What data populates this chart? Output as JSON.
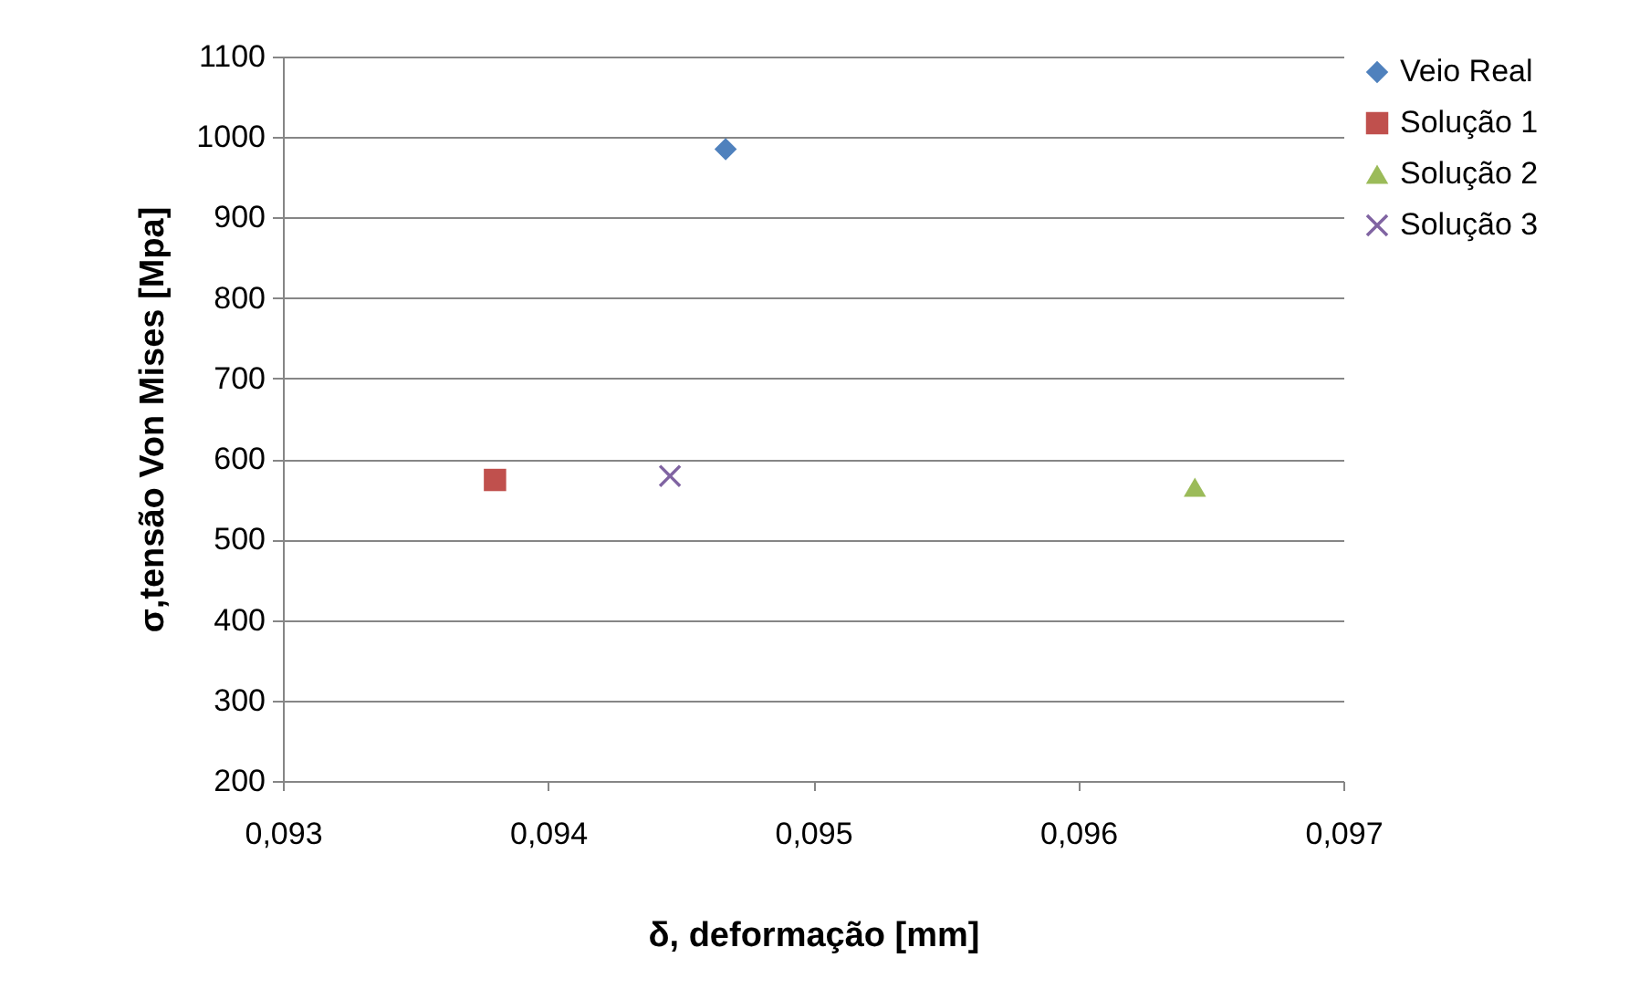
{
  "chart_data": {
    "type": "scatter",
    "xlabel": "δ, deformação [mm]",
    "ylabel": "σ,tensão Von Mises [Mpa]",
    "xlim": [
      0.093,
      0.097
    ],
    "xticks": [
      {
        "value": 0.093,
        "label": "0,093"
      },
      {
        "value": 0.094,
        "label": "0,094"
      },
      {
        "value": 0.095,
        "label": "0,095"
      },
      {
        "value": 0.096,
        "label": "0,096"
      },
      {
        "value": 0.097,
        "label": "0,097"
      }
    ],
    "ylim": [
      200,
      1100
    ],
    "yticks": [
      200,
      300,
      400,
      500,
      600,
      700,
      800,
      900,
      1000,
      1100
    ],
    "grid": "y",
    "legend": "right",
    "series": [
      {
        "name": "Veio Real",
        "color": "#4f81bd",
        "marker": "diamond",
        "x": [
          0.09467
        ],
        "values": [
          985
        ]
      },
      {
        "name": "Solução 1",
        "color": "#c0504d",
        "marker": "square",
        "x": [
          0.0938
        ],
        "values": [
          574
        ]
      },
      {
        "name": "Solução 2",
        "color": "#9bbb59",
        "marker": "triangle",
        "x": [
          0.09644
        ],
        "values": [
          565
        ]
      },
      {
        "name": "Solução 3",
        "color": "#8064a2",
        "marker": "cross",
        "x": [
          0.09446
        ],
        "values": [
          579
        ]
      }
    ]
  }
}
